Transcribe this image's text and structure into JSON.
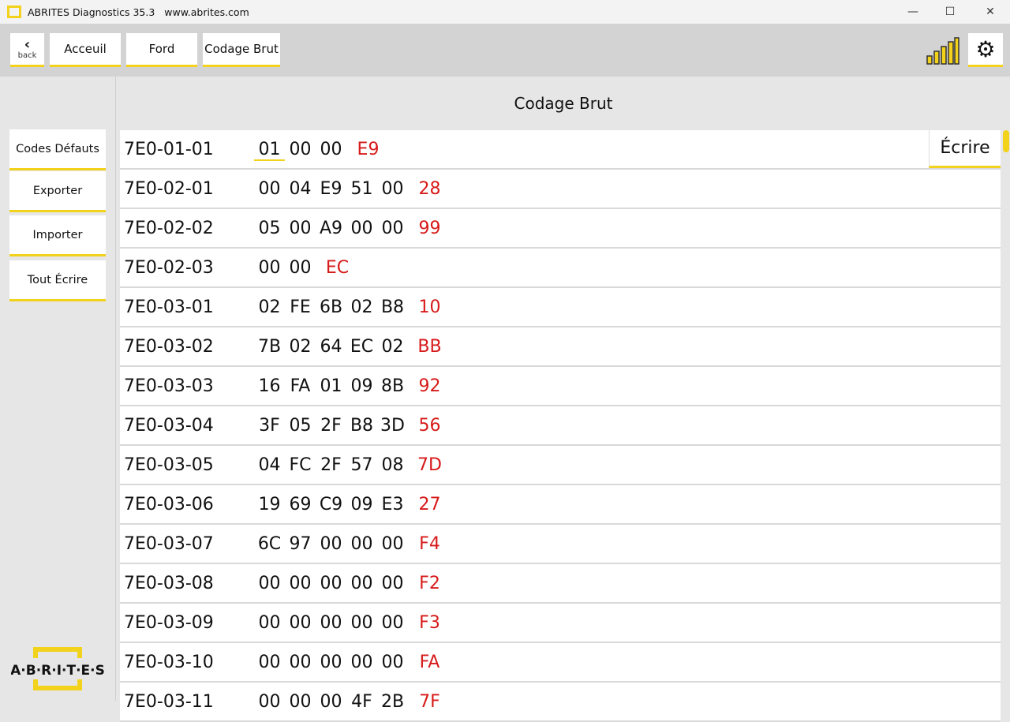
{
  "window": {
    "title": "ABRITES Diagnostics 35.3",
    "url": "www.abrites.com",
    "min": "—",
    "max": "☐",
    "close": "✕"
  },
  "toolbar": {
    "back": "back",
    "crumbs": [
      "Acceuil",
      "Ford",
      "Codage Brut"
    ]
  },
  "page_title": "Codage Brut",
  "sidebar": {
    "items": [
      "Codes Défauts",
      "Exporter",
      "Importer",
      "Tout Écrire"
    ],
    "logo": "ABRITES"
  },
  "write_label": "Écrire",
  "accent": "#f2d21b",
  "checksum_color": "#d71a1a",
  "rows": [
    {
      "addr": "7E0-01-01",
      "bytes": [
        "01",
        "00",
        "00"
      ],
      "cs": "E9"
    },
    {
      "addr": "7E0-02-01",
      "bytes": [
        "00",
        "04",
        "E9",
        "51",
        "00"
      ],
      "cs": "28"
    },
    {
      "addr": "7E0-02-02",
      "bytes": [
        "05",
        "00",
        "A9",
        "00",
        "00"
      ],
      "cs": "99"
    },
    {
      "addr": "7E0-02-03",
      "bytes": [
        "00",
        "00"
      ],
      "cs": "EC"
    },
    {
      "addr": "7E0-03-01",
      "bytes": [
        "02",
        "FE",
        "6B",
        "02",
        "B8"
      ],
      "cs": "10"
    },
    {
      "addr": "7E0-03-02",
      "bytes": [
        "7B",
        "02",
        "64",
        "EC",
        "02"
      ],
      "cs": "BB"
    },
    {
      "addr": "7E0-03-03",
      "bytes": [
        "16",
        "FA",
        "01",
        "09",
        "8B"
      ],
      "cs": "92"
    },
    {
      "addr": "7E0-03-04",
      "bytes": [
        "3F",
        "05",
        "2F",
        "B8",
        "3D"
      ],
      "cs": "56"
    },
    {
      "addr": "7E0-03-05",
      "bytes": [
        "04",
        "FC",
        "2F",
        "57",
        "08"
      ],
      "cs": "7D"
    },
    {
      "addr": "7E0-03-06",
      "bytes": [
        "19",
        "69",
        "C9",
        "09",
        "E3"
      ],
      "cs": "27"
    },
    {
      "addr": "7E0-03-07",
      "bytes": [
        "6C",
        "97",
        "00",
        "00",
        "00"
      ],
      "cs": "F4"
    },
    {
      "addr": "7E0-03-08",
      "bytes": [
        "00",
        "00",
        "00",
        "00",
        "00"
      ],
      "cs": "F2"
    },
    {
      "addr": "7E0-03-09",
      "bytes": [
        "00",
        "00",
        "00",
        "00",
        "00"
      ],
      "cs": "F3"
    },
    {
      "addr": "7E0-03-10",
      "bytes": [
        "00",
        "00",
        "00",
        "00",
        "00"
      ],
      "cs": "FA"
    },
    {
      "addr": "7E0-03-11",
      "bytes": [
        "00",
        "00",
        "00",
        "4F",
        "2B"
      ],
      "cs": "7F"
    }
  ]
}
